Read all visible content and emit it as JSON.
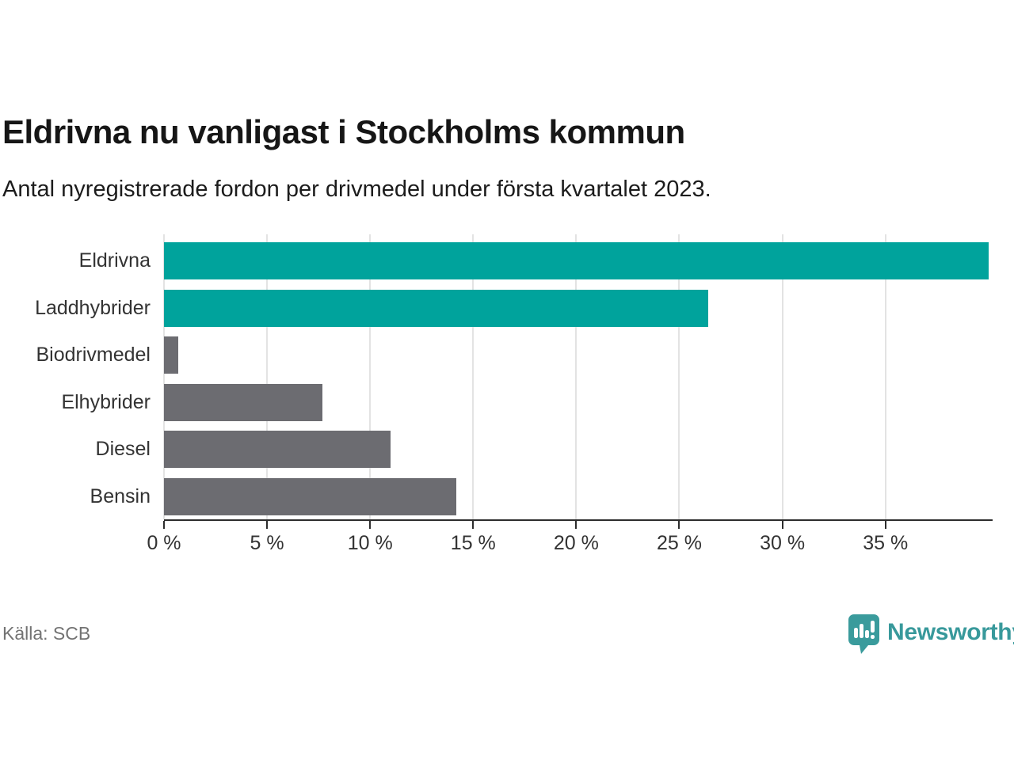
{
  "header": {
    "title": "Eldrivna nu vanligast i Stockholms kommun",
    "subtitle": "Antal nyregistrerade fordon per drivmedel under första kvartalet 2023."
  },
  "chart_data": {
    "type": "bar",
    "orientation": "horizontal",
    "title": "Eldrivna nu vanligast i Stockholms kommun",
    "subtitle": "Antal nyregistrerade fordon per drivmedel under första kvartalet 2023.",
    "categories": [
      "Eldrivna",
      "Laddhybrider",
      "Biodrivmedel",
      "Elhybrider",
      "Diesel",
      "Bensin"
    ],
    "values": [
      40.0,
      26.4,
      0.7,
      7.7,
      11.0,
      14.2
    ],
    "unit": "%",
    "xlim": [
      0,
      40.2
    ],
    "xticks": [
      0,
      5,
      10,
      15,
      20,
      25,
      30,
      35
    ],
    "xtick_labels": [
      "0 %",
      "5 %",
      "10 %",
      "15 %",
      "20 %",
      "25 %",
      "30 %",
      "35 %"
    ],
    "grid": true,
    "legend": "none",
    "highlight_color": "#00a39c",
    "base_color": "#6c6c71",
    "bar_colors": [
      "#00a39c",
      "#00a39c",
      "#6c6c71",
      "#6c6c71",
      "#6c6c71",
      "#6c6c71"
    ]
  },
  "footer": {
    "source": "Källa: SCB",
    "brand": "Newsworthy",
    "brand_color": "#38999b",
    "logo_color": "#3a9b9c"
  }
}
